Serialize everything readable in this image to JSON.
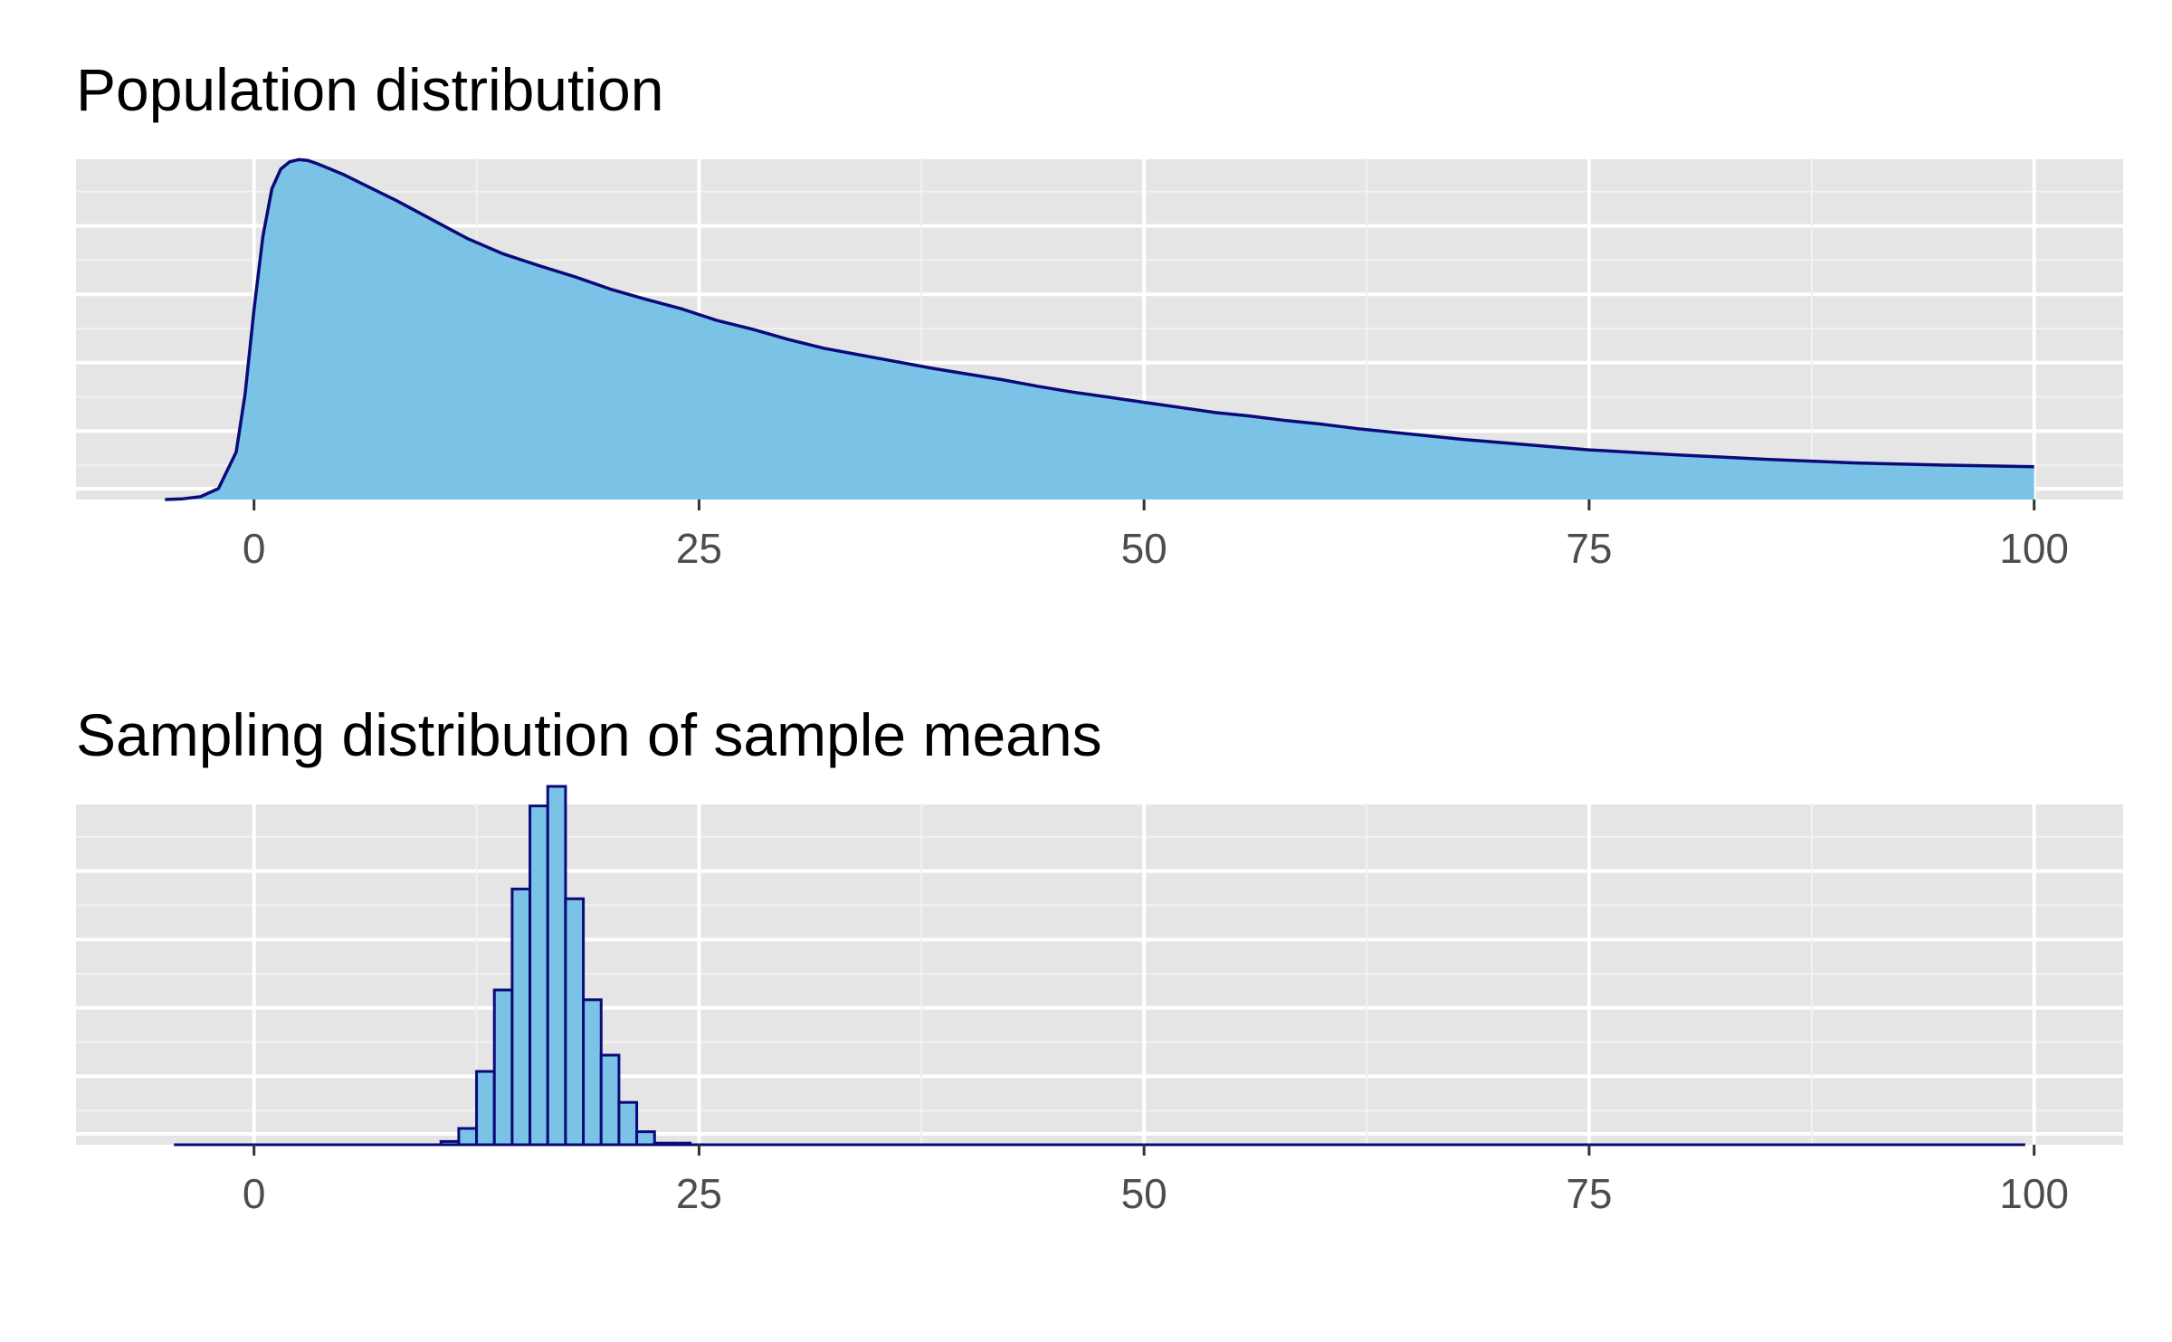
{
  "colors": {
    "panel_background": "#e5e5e5",
    "grid_major": "#ffffff",
    "grid_minor": "#f2f2f2",
    "fill": "#7ac3e6",
    "outline": "#0a0a7a",
    "tick_label": "#4d4d4d",
    "tick_mark": "#333333"
  },
  "chart_data": [
    {
      "type": "area",
      "title": "Population distribution",
      "xlabel": "",
      "ylabel": "",
      "xlim": [
        -10,
        105
      ],
      "ylim": [
        0,
        0.0468
      ],
      "x_ticks": [
        0,
        25,
        50,
        75,
        100
      ],
      "x_tick_labels": [
        "0",
        "25",
        "50",
        "75",
        "100"
      ],
      "y_ticks_shown": false,
      "grid": true,
      "x": [
        -5,
        -4,
        -3,
        -2,
        -1,
        -0.5,
        0,
        0.5,
        1,
        1.5,
        2,
        2.5,
        3,
        3.5,
        4,
        5,
        6,
        8,
        10,
        12,
        14,
        16,
        18,
        20,
        22,
        24,
        26,
        28,
        30,
        32,
        34,
        36,
        38,
        40,
        42,
        44,
        46,
        48,
        50,
        52,
        54,
        56,
        58,
        60,
        62,
        64,
        66,
        68,
        70,
        72,
        75,
        80,
        85,
        90,
        95,
        100
      ],
      "y": [
        0.0,
        0.0001,
        0.0004,
        0.0015,
        0.0065,
        0.0145,
        0.026,
        0.036,
        0.0425,
        0.0452,
        0.0462,
        0.0465,
        0.0464,
        0.046,
        0.0455,
        0.0445,
        0.0433,
        0.0409,
        0.0383,
        0.0357,
        0.0336,
        0.032,
        0.0305,
        0.0288,
        0.0274,
        0.0261,
        0.0245,
        0.0233,
        0.0219,
        0.0207,
        0.0198,
        0.0189,
        0.018,
        0.0172,
        0.0164,
        0.0155,
        0.0147,
        0.014,
        0.0133,
        0.0126,
        0.0119,
        0.0114,
        0.0108,
        0.0103,
        0.0097,
        0.0092,
        0.0087,
        0.0082,
        0.0078,
        0.0074,
        0.0068,
        0.0061,
        0.0055,
        0.005,
        0.0047,
        0.0045
      ]
    },
    {
      "type": "bar",
      "title": "Sampling distribution of sample means",
      "xlabel": "",
      "ylabel": "",
      "xlim": [
        -10,
        105
      ],
      "ylim": [
        0,
        0.21
      ],
      "x_ticks": [
        0,
        25,
        50,
        75,
        100
      ],
      "x_tick_labels": [
        "0",
        "25",
        "50",
        "75",
        "100"
      ],
      "y_ticks_shown": false,
      "grid": true,
      "baseline_range": [
        -4.5,
        99.5
      ],
      "bin_width": 1,
      "bins": [
        {
          "x0": 10.5,
          "x1": 11.5,
          "value": 0.002
        },
        {
          "x0": 11.5,
          "x1": 12.5,
          "value": 0.01
        },
        {
          "x0": 12.5,
          "x1": 13.5,
          "value": 0.045
        },
        {
          "x0": 13.5,
          "x1": 14.5,
          "value": 0.095
        },
        {
          "x0": 14.5,
          "x1": 15.5,
          "value": 0.157
        },
        {
          "x0": 15.5,
          "x1": 16.5,
          "value": 0.208
        },
        {
          "x0": 16.5,
          "x1": 17.5,
          "value": 0.22
        },
        {
          "x0": 17.5,
          "x1": 18.5,
          "value": 0.151
        },
        {
          "x0": 18.5,
          "x1": 19.5,
          "value": 0.089
        },
        {
          "x0": 19.5,
          "x1": 20.5,
          "value": 0.055
        },
        {
          "x0": 20.5,
          "x1": 21.5,
          "value": 0.026
        },
        {
          "x0": 21.5,
          "x1": 22.5,
          "value": 0.008
        },
        {
          "x0": 22.5,
          "x1": 23.5,
          "value": 0.001
        },
        {
          "x0": 23.5,
          "x1": 24.5,
          "value": 0.001
        }
      ]
    }
  ]
}
